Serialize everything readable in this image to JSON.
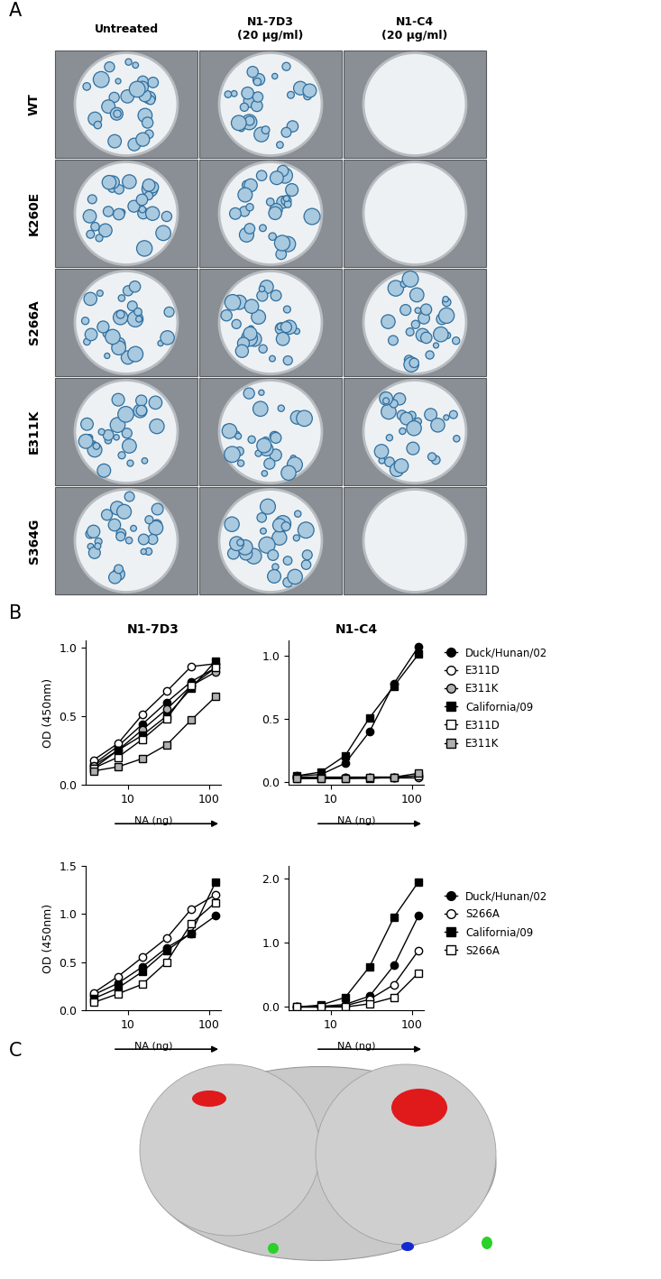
{
  "panel_labels": [
    "A",
    "B",
    "C"
  ],
  "plaque_assay": {
    "columns": [
      "Untreated",
      "N1-7D3\n(20 μg/ml)",
      "N1-C4\n(20 μg/ml)"
    ],
    "rows": [
      {
        "label": "WT",
        "plaques": [
          true,
          true,
          false
        ]
      },
      {
        "label": "K260E",
        "plaques": [
          true,
          true,
          false
        ]
      },
      {
        "label": "S266A",
        "plaques": [
          true,
          true,
          true
        ]
      },
      {
        "label": "E311K",
        "plaques": [
          true,
          true,
          true
        ]
      },
      {
        "label": "S364G",
        "plaques": [
          true,
          true,
          false
        ]
      }
    ]
  },
  "chart_data": [
    {
      "type": "line",
      "title": "N1-7D3",
      "x_label": "NA (ng)",
      "y_label": "OD (450nm)",
      "log": "x",
      "x": [
        3.75,
        7.5,
        15,
        30,
        60,
        120
      ],
      "xlim": [
        3,
        140
      ],
      "xticks": [
        10,
        100
      ],
      "ylim": [
        0,
        1.05
      ],
      "yticks": [
        {
          "value": 0,
          "label": "0.0"
        },
        {
          "value": 0.5,
          "label": "0.5"
        },
        {
          "value": 1.0,
          "label": "1.0"
        }
      ],
      "series": [
        {
          "name": "Duck/Hunan/02",
          "color": "black",
          "marker": "circle",
          "values": [
            0.15,
            0.28,
            0.44,
            0.6,
            0.75,
            0.85
          ]
        },
        {
          "name": "E311D",
          "color": "white",
          "marker": "circle",
          "values": [
            0.18,
            0.3,
            0.51,
            0.68,
            0.86,
            0.88
          ]
        },
        {
          "name": "E311K",
          "color": "#b0b0b0",
          "marker": "circle",
          "values": [
            0.14,
            0.25,
            0.4,
            0.55,
            0.72,
            0.82
          ]
        },
        {
          "name": "California/09",
          "color": "black",
          "marker": "square",
          "values": [
            0.12,
            0.25,
            0.36,
            0.5,
            0.7,
            0.9
          ]
        },
        {
          "name": "E311D",
          "color": "white",
          "marker": "square",
          "values": [
            0.12,
            0.2,
            0.33,
            0.48,
            0.72,
            0.85
          ]
        },
        {
          "name": "E311K",
          "color": "#b0b0b0",
          "marker": "square",
          "values": [
            0.1,
            0.13,
            0.19,
            0.29,
            0.47,
            0.64
          ]
        }
      ]
    },
    {
      "type": "line",
      "title": "N1-C4",
      "x_label": "NA (ng)",
      "log": "x",
      "x": [
        3.75,
        7.5,
        15,
        30,
        60,
        120
      ],
      "xlim": [
        3,
        140
      ],
      "xticks": [
        10,
        100
      ],
      "ylim": [
        -0.02,
        1.12
      ],
      "yticks": [
        {
          "value": 0,
          "label": "0.0"
        },
        {
          "value": 0.5,
          "label": "0.5"
        },
        {
          "value": 1.0,
          "label": "1.0"
        }
      ],
      "legend": "center left",
      "series": [
        {
          "name": "Duck/Hunan/02",
          "color": "black",
          "marker": "circle",
          "values": [
            0.05,
            0.06,
            0.15,
            0.4,
            0.78,
            1.07
          ]
        },
        {
          "name": "E311D",
          "color": "white",
          "marker": "circle",
          "values": [
            0.04,
            0.04,
            0.04,
            0.04,
            0.04,
            0.04
          ]
        },
        {
          "name": "E311K",
          "color": "#b0b0b0",
          "marker": "circle",
          "values": [
            0.04,
            0.04,
            0.04,
            0.04,
            0.04,
            0.05
          ]
        },
        {
          "name": "California/09",
          "color": "black",
          "marker": "square",
          "values": [
            0.05,
            0.08,
            0.21,
            0.51,
            0.76,
            1.01
          ]
        },
        {
          "name": "E311D",
          "color": "white",
          "marker": "square",
          "values": [
            0.03,
            0.03,
            0.03,
            0.03,
            0.04,
            0.05
          ]
        },
        {
          "name": "E311K",
          "color": "#b0b0b0",
          "marker": "square",
          "values": [
            0.03,
            0.03,
            0.03,
            0.04,
            0.04,
            0.07
          ]
        }
      ]
    },
    {
      "type": "line",
      "x_label": "NA (ng)",
      "y_label": "OD (450nm)",
      "log": "x",
      "x": [
        3.75,
        7.5,
        15,
        30,
        60,
        120
      ],
      "xlim": [
        3,
        140
      ],
      "xticks": [
        10,
        100
      ],
      "ylim": [
        0,
        1.5
      ],
      "yticks": [
        {
          "value": 0,
          "label": "0.0"
        },
        {
          "value": 0.5,
          "label": "0.5"
        },
        {
          "value": 1.0,
          "label": "1.0"
        },
        {
          "value": 1.5,
          "label": "1.5"
        }
      ],
      "series": [
        {
          "name": "Duck/Hunan/02",
          "color": "black",
          "marker": "circle",
          "values": [
            0.16,
            0.28,
            0.45,
            0.65,
            0.8,
            0.98
          ]
        },
        {
          "name": "S266A",
          "color": "white",
          "marker": "circle",
          "values": [
            0.18,
            0.35,
            0.55,
            0.75,
            1.05,
            1.2
          ]
        },
        {
          "name": "California/09",
          "color": "black",
          "marker": "square",
          "values": [
            0.12,
            0.23,
            0.4,
            0.62,
            0.8,
            1.33
          ]
        },
        {
          "name": "S266A",
          "color": "white",
          "marker": "square",
          "values": [
            0.08,
            0.17,
            0.27,
            0.5,
            0.9,
            1.12
          ]
        }
      ]
    },
    {
      "type": "line",
      "x_label": "NA (ng)",
      "log": "x",
      "x": [
        3.75,
        7.5,
        15,
        30,
        60,
        120
      ],
      "xlim": [
        3,
        140
      ],
      "xticks": [
        10,
        100
      ],
      "ylim": [
        -0.05,
        2.2
      ],
      "yticks": [
        {
          "value": 0,
          "label": "0.0"
        },
        {
          "value": 1.0,
          "label": "1.0"
        },
        {
          "value": 2.0,
          "label": "2.0"
        }
      ],
      "legend": "center left",
      "series": [
        {
          "name": "Duck/Hunan/02",
          "color": "black",
          "marker": "circle",
          "values": [
            0.0,
            0.01,
            0.04,
            0.17,
            0.65,
            1.42
          ]
        },
        {
          "name": "S266A",
          "color": "white",
          "marker": "circle",
          "values": [
            0.0,
            0.0,
            0.02,
            0.12,
            0.35,
            0.88
          ]
        },
        {
          "name": "California/09",
          "color": "black",
          "marker": "square",
          "values": [
            0.0,
            0.03,
            0.15,
            0.63,
            1.4,
            1.95
          ]
        },
        {
          "name": "S266A",
          "color": "white",
          "marker": "square",
          "values": [
            0.0,
            0.0,
            0.0,
            0.05,
            0.15,
            0.53
          ]
        }
      ]
    }
  ]
}
